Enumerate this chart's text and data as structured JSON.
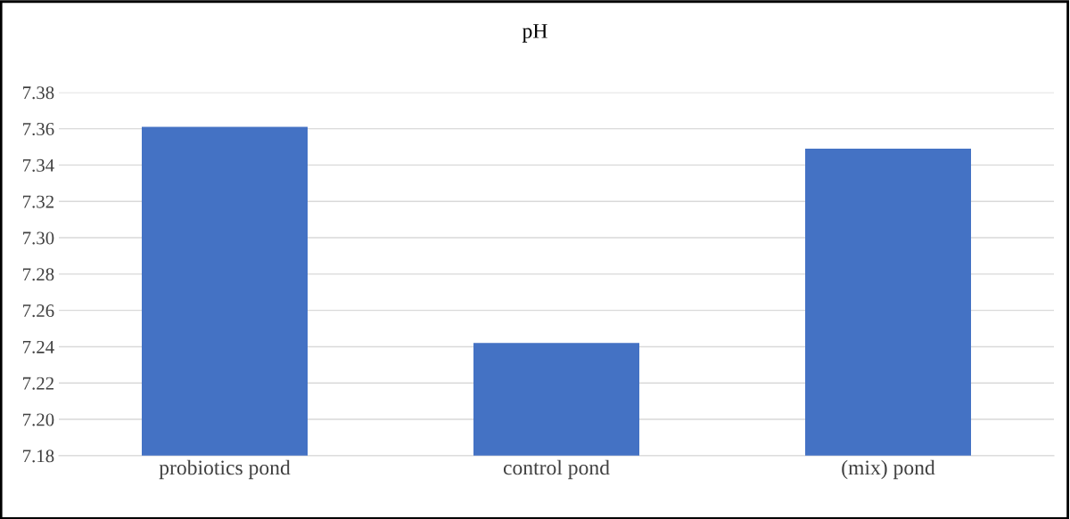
{
  "chart_data": {
    "type": "bar",
    "title": "pH",
    "categories": [
      "probiotics pond",
      "control pond",
      "(mix) pond"
    ],
    "values": [
      7.361,
      7.242,
      7.349
    ],
    "color": "#4472c4",
    "ylim": [
      7.18,
      7.38
    ],
    "yticks": [
      {
        "value": 7.18,
        "label": "7.18"
      },
      {
        "value": 7.2,
        "label": "7.20"
      },
      {
        "value": 7.22,
        "label": "7.22"
      },
      {
        "value": 7.24,
        "label": "7.24"
      },
      {
        "value": 7.26,
        "label": "7.26"
      },
      {
        "value": 7.28,
        "label": "7.28"
      },
      {
        "value": 7.3,
        "label": "7.30"
      },
      {
        "value": 7.32,
        "label": "7.32"
      },
      {
        "value": 7.34,
        "label": "7.34"
      },
      {
        "value": 7.36,
        "label": "7.36"
      },
      {
        "value": 7.38,
        "label": "7.38"
      }
    ],
    "grid": "y"
  }
}
